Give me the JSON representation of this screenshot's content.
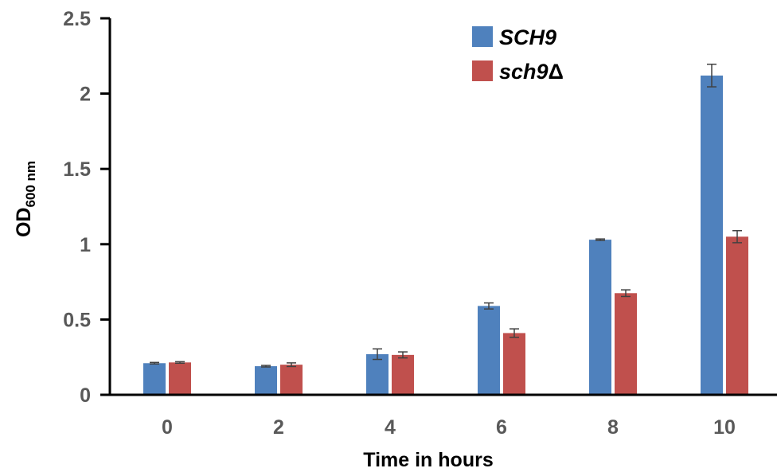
{
  "chart_data": {
    "type": "bar",
    "title": "",
    "xlabel": "Time in hours",
    "ylabel": {
      "main": "OD",
      "sub": "600 nm"
    },
    "categories": [
      "0",
      "2",
      "4",
      "6",
      "8",
      "10"
    ],
    "ylim": [
      0,
      2.5
    ],
    "yticks": [
      "0",
      "0.5",
      "1",
      "1.5",
      "2",
      "2.5"
    ],
    "grid": false,
    "legend": "top-right",
    "series": [
      {
        "name": "SCH9",
        "name_suffix": "",
        "color": "#4F81BD",
        "values": [
          0.21,
          0.19,
          0.27,
          0.59,
          1.03,
          2.12
        ],
        "errors": [
          0.005,
          0.005,
          0.035,
          0.02,
          0.005,
          0.075
        ]
      },
      {
        "name": "sch9",
        "name_suffix": "Δ",
        "color": "#C0504D",
        "values": [
          0.215,
          0.2,
          0.265,
          0.41,
          0.675,
          1.05
        ],
        "errors": [
          0.005,
          0.012,
          0.02,
          0.028,
          0.022,
          0.04
        ]
      }
    ]
  }
}
